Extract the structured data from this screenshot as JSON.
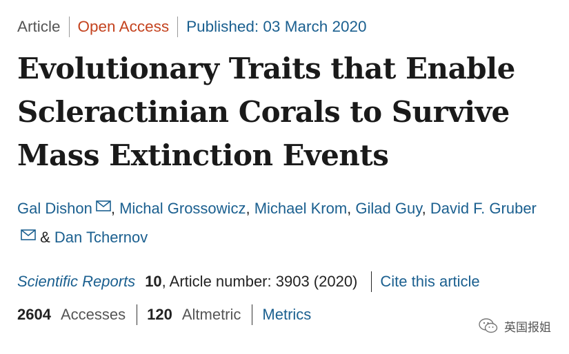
{
  "meta": {
    "type": "Article",
    "access": "Open Access",
    "published": "Published: 03 March 2020"
  },
  "title": "Evolutionary Traits that Enable Scleractinian Corals to Survive Mass Extinction Events",
  "authors": {
    "a1": "Gal Dishon",
    "sep1": ", ",
    "a2": "Michal Grossowicz",
    "sep2": ", ",
    "a3": "Michael Krom",
    "sep3": ", ",
    "a4": "Gilad Guy",
    "sep4": ", ",
    "a5": "David F. Gruber",
    "amp": " & ",
    "a6": "Dan Tchernov"
  },
  "citation": {
    "journal": "Scientific Reports",
    "volume": "10",
    "article_number": ", Article number: 3903 (2020)",
    "cite_link": "Cite this article"
  },
  "metrics": {
    "accesses_count": "2604",
    "accesses_label": "Accesses",
    "altmetric_count": "120",
    "altmetric_label": "Altmetric",
    "metrics_link": "Metrics"
  },
  "watermark": {
    "text": "英国报姐",
    "icon": "wechat-icon"
  },
  "colors": {
    "link": "#1a5f8f",
    "open_access": "#c4431f",
    "text": "#222222"
  }
}
